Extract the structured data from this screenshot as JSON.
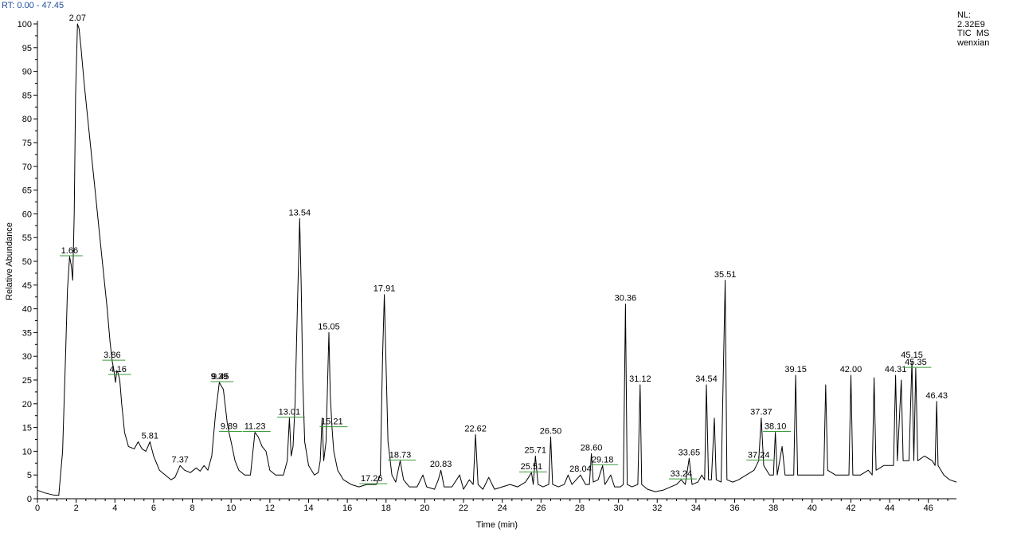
{
  "header": {
    "rt_label": "RT: 0.00 - 47.45",
    "nl_lines": [
      "NL:",
      "2.32E9",
      "TIC  MS",
      "wenxian"
    ]
  },
  "chart_data": {
    "type": "line",
    "xlabel": "Time (min)",
    "ylabel": "Relative Abundance",
    "xlim": [
      0,
      47.45
    ],
    "ylim": [
      0,
      100
    ],
    "xticks": [
      0,
      2,
      4,
      6,
      8,
      10,
      12,
      14,
      16,
      18,
      20,
      22,
      24,
      26,
      28,
      30,
      32,
      34,
      36,
      38,
      40,
      42,
      44,
      46
    ],
    "yticks": [
      0,
      5,
      10,
      15,
      20,
      25,
      30,
      35,
      40,
      45,
      50,
      55,
      60,
      65,
      70,
      75,
      80,
      85,
      90,
      95,
      100
    ],
    "grid": false,
    "colors": {
      "trace": "#000000",
      "label_underline": "#3a9a3a",
      "rt_text": "#1f4e9c"
    },
    "peaks": [
      {
        "rt": 1.66,
        "label": "1.66",
        "y": 51,
        "underline": true
      },
      {
        "rt": 2.07,
        "label": "2.07",
        "y": 100,
        "underline": false
      },
      {
        "rt": 3.86,
        "label": "3.86",
        "y": 29,
        "underline": true
      },
      {
        "rt": 4.16,
        "label": "4.16",
        "y": 26,
        "underline": true
      },
      {
        "rt": 5.81,
        "label": "5.81",
        "y": 12,
        "underline": false
      },
      {
        "rt": 7.37,
        "label": "7.37",
        "y": 7,
        "underline": false
      },
      {
        "rt": 9.39,
        "label": "9.39",
        "y": 24.5,
        "underline": false
      },
      {
        "rt": 9.45,
        "label": "9.45",
        "y": 24.5,
        "underline": true
      },
      {
        "rt": 9.89,
        "label": "9.89",
        "y": 14,
        "underline": true
      },
      {
        "rt": 11.23,
        "label": "11.23",
        "y": 14,
        "underline": true
      },
      {
        "rt": 13.01,
        "label": "13.01",
        "y": 17,
        "underline": true
      },
      {
        "rt": 13.54,
        "label": "13.54",
        "y": 59,
        "underline": false
      },
      {
        "rt": 15.05,
        "label": "15.05",
        "y": 35,
        "underline": false
      },
      {
        "rt": 15.21,
        "label": "15.21",
        "y": 15,
        "underline": true
      },
      {
        "rt": 17.26,
        "label": "17.26",
        "y": 3,
        "underline": true
      },
      {
        "rt": 17.91,
        "label": "17.91",
        "y": 43,
        "underline": false
      },
      {
        "rt": 18.73,
        "label": "18.73",
        "y": 8,
        "underline": true
      },
      {
        "rt": 20.83,
        "label": "20.83",
        "y": 6,
        "underline": false
      },
      {
        "rt": 22.62,
        "label": "22.62",
        "y": 13.5,
        "underline": false
      },
      {
        "rt": 25.51,
        "label": "25.51",
        "y": 5.5,
        "underline": true
      },
      {
        "rt": 25.71,
        "label": "25.71",
        "y": 9,
        "underline": false
      },
      {
        "rt": 26.5,
        "label": "26.50",
        "y": 13,
        "underline": false
      },
      {
        "rt": 28.04,
        "label": "28.04",
        "y": 5,
        "underline": false
      },
      {
        "rt": 28.6,
        "label": "28.60",
        "y": 9.5,
        "underline": false
      },
      {
        "rt": 29.18,
        "label": "29.18",
        "y": 7,
        "underline": true
      },
      {
        "rt": 30.36,
        "label": "30.36",
        "y": 41,
        "underline": false
      },
      {
        "rt": 31.12,
        "label": "31.12",
        "y": 24,
        "underline": false
      },
      {
        "rt": 33.24,
        "label": "33.24",
        "y": 4,
        "underline": true
      },
      {
        "rt": 33.65,
        "label": "33.65",
        "y": 8.5,
        "underline": false
      },
      {
        "rt": 34.54,
        "label": "34.54",
        "y": 24,
        "underline": false
      },
      {
        "rt": 35.51,
        "label": "35.51",
        "y": 46,
        "underline": false
      },
      {
        "rt": 37.24,
        "label": "37.24",
        "y": 8,
        "underline": true
      },
      {
        "rt": 37.37,
        "label": "37.37",
        "y": 17,
        "underline": false
      },
      {
        "rt": 38.1,
        "label": "38.10",
        "y": 14,
        "underline": true
      },
      {
        "rt": 39.15,
        "label": "39.15",
        "y": 26,
        "underline": false
      },
      {
        "rt": 42.0,
        "label": "42.00",
        "y": 26,
        "underline": false
      },
      {
        "rt": 44.31,
        "label": "44.31",
        "y": 26,
        "underline": false
      },
      {
        "rt": 45.15,
        "label": "45.15",
        "y": 29,
        "underline": false
      },
      {
        "rt": 45.35,
        "label": "45.35",
        "y": 27.5,
        "underline": true
      },
      {
        "rt": 46.43,
        "label": "46.43",
        "y": 20.5,
        "underline": false
      }
    ],
    "unlabeled_peaks": [
      {
        "rt": 8.6,
        "y": 7
      },
      {
        "rt": 14.7,
        "y": 17
      },
      {
        "rt": 19.9,
        "y": 5
      },
      {
        "rt": 21.8,
        "y": 5
      },
      {
        "rt": 23.3,
        "y": 4.5
      },
      {
        "rt": 27.4,
        "y": 5
      },
      {
        "rt": 29.6,
        "y": 5
      },
      {
        "rt": 34.3,
        "y": 5
      },
      {
        "rt": 34.95,
        "y": 17
      },
      {
        "rt": 38.45,
        "y": 11
      },
      {
        "rt": 40.7,
        "y": 24
      },
      {
        "rt": 43.2,
        "y": 25.5
      },
      {
        "rt": 44.6,
        "y": 25
      }
    ],
    "trace": [
      [
        0.0,
        1.8
      ],
      [
        0.4,
        1.2
      ],
      [
        0.8,
        0.8
      ],
      [
        1.1,
        0.7
      ],
      [
        1.3,
        10
      ],
      [
        1.45,
        30
      ],
      [
        1.55,
        44
      ],
      [
        1.66,
        51
      ],
      [
        1.75,
        49
      ],
      [
        1.82,
        46
      ],
      [
        1.9,
        60
      ],
      [
        1.97,
        85
      ],
      [
        2.07,
        100
      ],
      [
        2.15,
        99
      ],
      [
        2.25,
        95
      ],
      [
        2.4,
        88
      ],
      [
        2.6,
        80
      ],
      [
        2.8,
        72
      ],
      [
        3.0,
        64
      ],
      [
        3.2,
        56
      ],
      [
        3.4,
        48
      ],
      [
        3.6,
        40
      ],
      [
        3.75,
        33
      ],
      [
        3.86,
        29
      ],
      [
        3.95,
        27
      ],
      [
        4.03,
        24.5
      ],
      [
        4.1,
        27
      ],
      [
        4.16,
        26.5
      ],
      [
        4.25,
        25
      ],
      [
        4.35,
        20
      ],
      [
        4.5,
        14
      ],
      [
        4.7,
        11
      ],
      [
        5.0,
        10.5
      ],
      [
        5.2,
        12
      ],
      [
        5.4,
        10.5
      ],
      [
        5.6,
        10
      ],
      [
        5.81,
        12
      ],
      [
        6.0,
        9
      ],
      [
        6.3,
        6
      ],
      [
        6.6,
        5
      ],
      [
        6.9,
        4
      ],
      [
        7.1,
        4.5
      ],
      [
        7.37,
        7
      ],
      [
        7.6,
        6
      ],
      [
        7.9,
        5.5
      ],
      [
        8.2,
        6.5
      ],
      [
        8.4,
        5.8
      ],
      [
        8.6,
        7
      ],
      [
        8.8,
        6
      ],
      [
        9.0,
        9
      ],
      [
        9.2,
        18
      ],
      [
        9.39,
        24.5
      ],
      [
        9.6,
        23
      ],
      [
        9.8,
        16
      ],
      [
        9.89,
        14
      ],
      [
        10.0,
        12
      ],
      [
        10.2,
        8
      ],
      [
        10.4,
        6
      ],
      [
        10.7,
        5
      ],
      [
        11.0,
        5
      ],
      [
        11.1,
        9
      ],
      [
        11.23,
        14
      ],
      [
        11.4,
        13
      ],
      [
        11.6,
        11
      ],
      [
        11.8,
        10
      ],
      [
        12.0,
        6
      ],
      [
        12.3,
        5
      ],
      [
        12.7,
        5
      ],
      [
        12.9,
        8
      ],
      [
        13.01,
        17
      ],
      [
        13.1,
        9
      ],
      [
        13.2,
        11
      ],
      [
        13.3,
        20
      ],
      [
        13.42,
        40
      ],
      [
        13.54,
        59
      ],
      [
        13.62,
        45
      ],
      [
        13.7,
        25
      ],
      [
        13.8,
        12
      ],
      [
        14.0,
        7
      ],
      [
        14.3,
        5
      ],
      [
        14.5,
        5.5
      ],
      [
        14.6,
        8
      ],
      [
        14.7,
        17
      ],
      [
        14.78,
        8
      ],
      [
        14.9,
        12
      ],
      [
        15.05,
        35
      ],
      [
        15.12,
        22
      ],
      [
        15.21,
        15
      ],
      [
        15.3,
        10
      ],
      [
        15.5,
        6
      ],
      [
        15.8,
        4
      ],
      [
        16.2,
        3
      ],
      [
        16.6,
        2.5
      ],
      [
        17.0,
        3
      ],
      [
        17.26,
        3
      ],
      [
        17.5,
        3
      ],
      [
        17.7,
        5
      ],
      [
        17.82,
        30
      ],
      [
        17.91,
        43
      ],
      [
        18.0,
        28
      ],
      [
        18.1,
        12
      ],
      [
        18.3,
        5
      ],
      [
        18.5,
        3.5
      ],
      [
        18.73,
        8
      ],
      [
        18.9,
        4
      ],
      [
        19.2,
        2.5
      ],
      [
        19.6,
        2.5
      ],
      [
        19.9,
        5
      ],
      [
        20.1,
        2.5
      ],
      [
        20.5,
        2
      ],
      [
        20.7,
        4
      ],
      [
        20.83,
        6
      ],
      [
        21.0,
        2.5
      ],
      [
        21.4,
        2.5
      ],
      [
        21.8,
        5
      ],
      [
        22.0,
        2
      ],
      [
        22.3,
        4
      ],
      [
        22.5,
        3
      ],
      [
        22.62,
        13.5
      ],
      [
        22.75,
        3
      ],
      [
        23.0,
        2
      ],
      [
        23.3,
        4.5
      ],
      [
        23.6,
        2
      ],
      [
        24.0,
        2.5
      ],
      [
        24.4,
        3
      ],
      [
        24.8,
        2.5
      ],
      [
        25.2,
        3.5
      ],
      [
        25.51,
        5.5
      ],
      [
        25.6,
        3
      ],
      [
        25.71,
        9
      ],
      [
        25.85,
        3
      ],
      [
        26.1,
        2.5
      ],
      [
        26.4,
        3
      ],
      [
        26.5,
        13
      ],
      [
        26.6,
        3
      ],
      [
        26.9,
        2.5
      ],
      [
        27.2,
        3
      ],
      [
        27.4,
        5
      ],
      [
        27.6,
        3
      ],
      [
        28.04,
        5
      ],
      [
        28.3,
        3
      ],
      [
        28.5,
        3
      ],
      [
        28.6,
        9.5
      ],
      [
        28.7,
        3.5
      ],
      [
        28.95,
        4
      ],
      [
        29.18,
        7
      ],
      [
        29.3,
        3
      ],
      [
        29.6,
        5
      ],
      [
        29.8,
        2.5
      ],
      [
        30.1,
        2.5
      ],
      [
        30.25,
        3
      ],
      [
        30.36,
        41
      ],
      [
        30.45,
        3
      ],
      [
        30.7,
        2.5
      ],
      [
        31.0,
        3
      ],
      [
        31.12,
        24
      ],
      [
        31.2,
        3
      ],
      [
        31.5,
        2
      ],
      [
        31.9,
        1.5
      ],
      [
        32.3,
        1.8
      ],
      [
        32.7,
        2.5
      ],
      [
        33.0,
        3
      ],
      [
        33.24,
        4
      ],
      [
        33.45,
        3
      ],
      [
        33.65,
        8.5
      ],
      [
        33.8,
        3
      ],
      [
        34.1,
        3.5
      ],
      [
        34.3,
        5
      ],
      [
        34.45,
        4
      ],
      [
        34.54,
        24
      ],
      [
        34.65,
        4
      ],
      [
        34.8,
        4
      ],
      [
        34.95,
        17
      ],
      [
        35.05,
        4
      ],
      [
        35.3,
        3.5
      ],
      [
        35.51,
        46
      ],
      [
        35.6,
        4
      ],
      [
        35.9,
        3.5
      ],
      [
        36.2,
        4
      ],
      [
        36.6,
        5
      ],
      [
        37.0,
        6
      ],
      [
        37.24,
        8
      ],
      [
        37.37,
        17
      ],
      [
        37.5,
        7
      ],
      [
        37.8,
        5
      ],
      [
        38.0,
        5
      ],
      [
        38.1,
        14
      ],
      [
        38.2,
        5
      ],
      [
        38.45,
        11
      ],
      [
        38.6,
        5
      ],
      [
        38.9,
        5
      ],
      [
        39.05,
        5
      ],
      [
        39.15,
        26
      ],
      [
        39.25,
        5
      ],
      [
        39.6,
        5
      ],
      [
        40.0,
        5
      ],
      [
        40.3,
        5
      ],
      [
        40.6,
        5
      ],
      [
        40.7,
        24
      ],
      [
        40.8,
        6
      ],
      [
        41.2,
        5
      ],
      [
        41.6,
        5
      ],
      [
        41.9,
        5
      ],
      [
        42.0,
        26
      ],
      [
        42.1,
        5
      ],
      [
        42.5,
        5
      ],
      [
        42.9,
        6
      ],
      [
        43.1,
        5
      ],
      [
        43.2,
        25.5
      ],
      [
        43.3,
        6
      ],
      [
        43.7,
        7
      ],
      [
        44.1,
        7
      ],
      [
        44.2,
        7
      ],
      [
        44.31,
        26
      ],
      [
        44.4,
        8
      ],
      [
        44.6,
        25
      ],
      [
        44.7,
        8
      ],
      [
        45.0,
        8
      ],
      [
        45.15,
        29
      ],
      [
        45.25,
        8
      ],
      [
        45.35,
        27.5
      ],
      [
        45.45,
        8
      ],
      [
        45.8,
        9
      ],
      [
        46.2,
        8
      ],
      [
        46.35,
        7
      ],
      [
        46.43,
        20.5
      ],
      [
        46.5,
        7
      ],
      [
        46.8,
        5
      ],
      [
        47.1,
        4
      ],
      [
        47.45,
        3.5
      ]
    ]
  }
}
